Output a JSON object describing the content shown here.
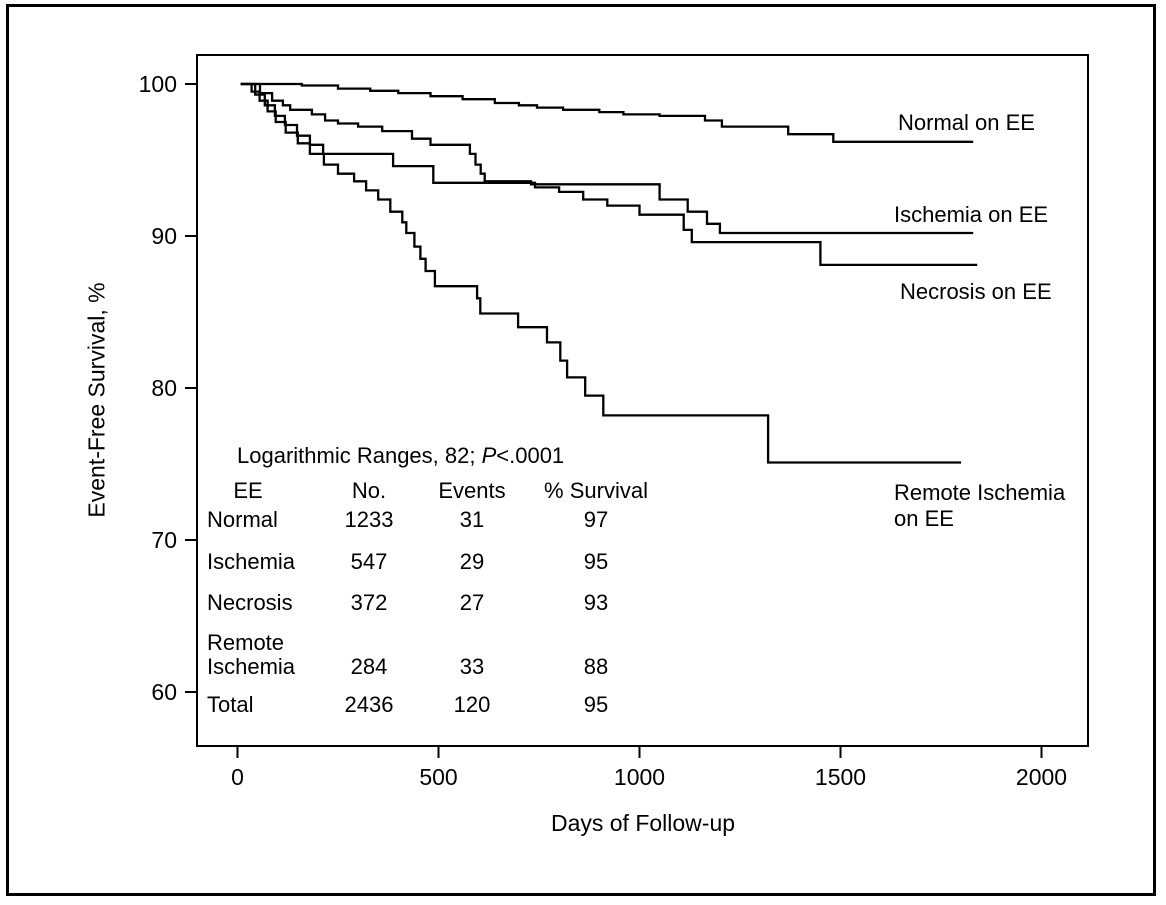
{
  "chart_data": {
    "type": "line",
    "variant": "kaplan_meier_step_survival",
    "title": "",
    "xlabel": "Days of Follow-up",
    "ylabel": "Event-Free Survival, %",
    "xlim": [
      0,
      2000
    ],
    "ylim": [
      60,
      100
    ],
    "x_ticks": [
      0,
      500,
      1000,
      1500,
      2000
    ],
    "y_ticks": [
      100,
      90,
      80,
      70,
      60
    ],
    "grid": false,
    "legend_position": "labels-at-line-ends",
    "line_color": "#000000",
    "background_color": "#ffffff",
    "series": [
      {
        "name": "Normal on EE",
        "label_lines": [
          "Normal on EE"
        ],
        "points": [
          [
            8,
            100
          ],
          [
            160,
            99.9
          ],
          [
            250,
            99.7
          ],
          [
            330,
            99.55
          ],
          [
            400,
            99.4
          ],
          [
            480,
            99.2
          ],
          [
            560,
            99.0
          ],
          [
            640,
            98.75
          ],
          [
            700,
            98.6
          ],
          [
            745,
            98.45
          ],
          [
            810,
            98.3
          ],
          [
            900,
            98.15
          ],
          [
            960,
            98.0
          ],
          [
            1050,
            97.9
          ],
          [
            1163,
            97.6
          ],
          [
            1205,
            97.2
          ],
          [
            1370,
            96.7
          ],
          [
            1482,
            96.2
          ],
          [
            1830,
            96.2
          ]
        ]
      },
      {
        "name": "Ischemia on EE",
        "label_lines": [
          "Ischemia on EE"
        ],
        "points": [
          [
            8,
            100
          ],
          [
            56,
            99.4
          ],
          [
            86,
            98.9
          ],
          [
            113,
            98.6
          ],
          [
            131,
            98.3
          ],
          [
            185,
            98.0
          ],
          [
            218,
            97.6
          ],
          [
            250,
            97.4
          ],
          [
            300,
            97.2
          ],
          [
            360,
            96.9
          ],
          [
            434,
            96.4
          ],
          [
            480,
            96.0
          ],
          [
            578,
            95.4
          ],
          [
            592,
            94.7
          ],
          [
            605,
            94.1
          ],
          [
            615,
            93.6
          ],
          [
            730,
            93.4
          ],
          [
            1050,
            92.4
          ],
          [
            1120,
            91.6
          ],
          [
            1168,
            90.8
          ],
          [
            1200,
            90.2
          ],
          [
            1830,
            90.2
          ]
        ]
      },
      {
        "name": "Necrosis on EE",
        "label_lines": [
          "Necrosis on EE"
        ],
        "points": [
          [
            8,
            100
          ],
          [
            44,
            99.3
          ],
          [
            68,
            98.6
          ],
          [
            93,
            97.9
          ],
          [
            118,
            97.3
          ],
          [
            148,
            96.6
          ],
          [
            180,
            96.0
          ],
          [
            213,
            95.4
          ],
          [
            387,
            94.6
          ],
          [
            487,
            93.5
          ],
          [
            740,
            93.2
          ],
          [
            800,
            92.9
          ],
          [
            860,
            92.4
          ],
          [
            920,
            92.0
          ],
          [
            1000,
            91.4
          ],
          [
            1110,
            90.4
          ],
          [
            1130,
            89.6
          ],
          [
            1450,
            88.1
          ],
          [
            1840,
            88.1
          ]
        ]
      },
      {
        "name": "Remote Ischemia on EE",
        "label_lines": [
          "Remote Ischemia",
          "on EE"
        ],
        "points": [
          [
            8,
            100
          ],
          [
            35,
            99.5
          ],
          [
            55,
            98.9
          ],
          [
            75,
            98.2
          ],
          [
            95,
            97.5
          ],
          [
            120,
            96.8
          ],
          [
            150,
            96.1
          ],
          [
            180,
            95.4
          ],
          [
            215,
            94.7
          ],
          [
            250,
            94.1
          ],
          [
            290,
            93.6
          ],
          [
            320,
            93.0
          ],
          [
            350,
            92.4
          ],
          [
            380,
            91.6
          ],
          [
            410,
            90.9
          ],
          [
            420,
            90.2
          ],
          [
            440,
            89.3
          ],
          [
            455,
            88.5
          ],
          [
            468,
            87.7
          ],
          [
            491,
            86.7
          ],
          [
            596,
            85.9
          ],
          [
            604,
            84.9
          ],
          [
            698,
            84.0
          ],
          [
            770,
            83.0
          ],
          [
            803,
            81.8
          ],
          [
            820,
            80.7
          ],
          [
            865,
            79.5
          ],
          [
            910,
            78.2
          ],
          [
            1320,
            75.1
          ],
          [
            1800,
            75.1
          ]
        ]
      }
    ],
    "annotation": {
      "stat_prefix": "Logarithmic Ranges, 82; ",
      "stat_p_symbol": "P",
      "stat_p_rest": "<.0001"
    },
    "summary_table": {
      "headers": [
        "EE",
        "No.",
        "Events",
        "% Survival"
      ],
      "rows": [
        {
          "label_lines": [
            "Normal"
          ],
          "no": "1233",
          "events": "31",
          "survival": "97"
        },
        {
          "label_lines": [
            "Ischemia"
          ],
          "no": "547",
          "events": "29",
          "survival": "95"
        },
        {
          "label_lines": [
            "Necrosis"
          ],
          "no": "372",
          "events": "27",
          "survival": "93"
        },
        {
          "label_lines": [
            "Remote",
            "Ischemia"
          ],
          "no": "284",
          "events": "33",
          "survival": "88"
        },
        {
          "label_lines": [
            "Total"
          ],
          "no": "2436",
          "events": "120",
          "survival": "95"
        }
      ]
    }
  }
}
